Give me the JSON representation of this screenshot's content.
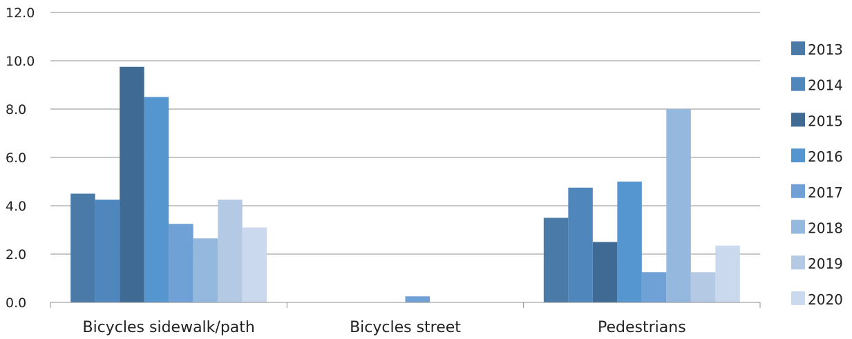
{
  "chart_data": {
    "type": "bar",
    "title": "",
    "xlabel": "",
    "ylabel": "",
    "ylim": [
      0,
      12
    ],
    "y_ticks": [
      "0.0",
      "2.0",
      "4.0",
      "6.0",
      "8.0",
      "10.0",
      "12.0"
    ],
    "y_tick_values": [
      0,
      2,
      4,
      6,
      8,
      10,
      12
    ],
    "grid": true,
    "legend_position": "right",
    "categories": [
      "Bicycles sidewalk/path",
      "Bicycles street",
      "Pedestrians"
    ],
    "series": [
      {
        "name": "2013",
        "color": "#4a7aa8",
        "values": [
          4.5,
          0.0,
          3.5
        ]
      },
      {
        "name": "2014",
        "color": "#4f87bd",
        "values": [
          4.25,
          0.0,
          4.75
        ]
      },
      {
        "name": "2015",
        "color": "#3f6a94",
        "values": [
          9.75,
          0.0,
          2.5
        ]
      },
      {
        "name": "2016",
        "color": "#5596d0",
        "values": [
          8.5,
          0.0,
          5.0
        ]
      },
      {
        "name": "2017",
        "color": "#6fa1d6",
        "values": [
          3.25,
          0.25,
          1.25
        ]
      },
      {
        "name": "2018",
        "color": "#95b8de",
        "values": [
          2.65,
          0.0,
          8.0
        ]
      },
      {
        "name": "2019",
        "color": "#b4c9e4",
        "values": [
          4.25,
          0.0,
          1.25
        ]
      },
      {
        "name": "2020",
        "color": "#cbd9ee",
        "values": [
          3.1,
          0.0,
          2.35
        ]
      }
    ]
  }
}
